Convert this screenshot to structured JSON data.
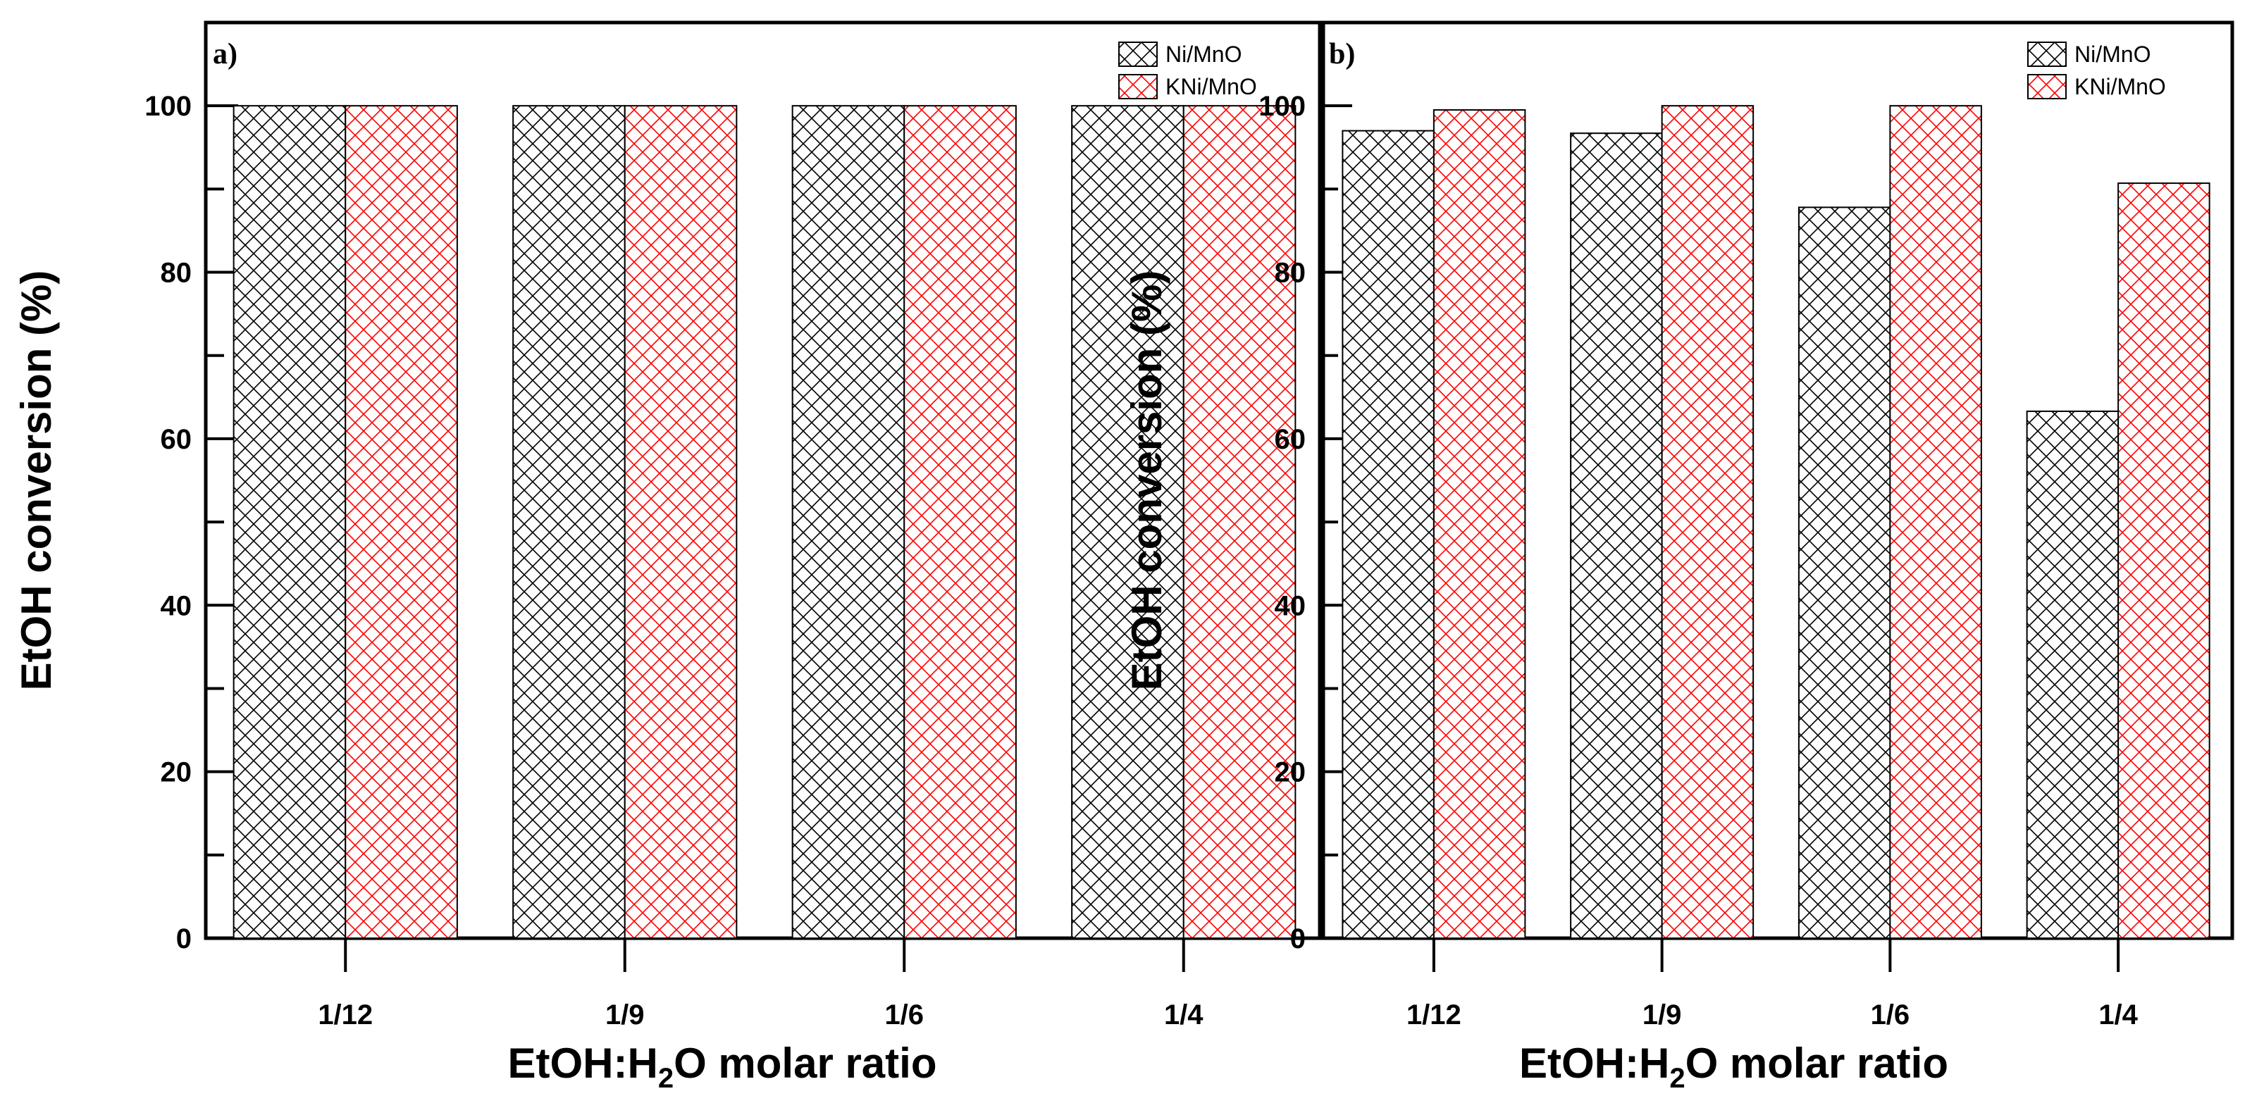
{
  "chart_data": [
    {
      "type": "bar",
      "panel_label": "a)",
      "categories": [
        "1/12",
        "1/9",
        "1/6",
        "1/4"
      ],
      "series": [
        {
          "name": "Ni/MnO",
          "values": [
            100,
            100,
            100,
            100
          ],
          "color": "#000000"
        },
        {
          "name": "KNi/MnO",
          "values": [
            100,
            100,
            100,
            100
          ],
          "color": "#ff0000"
        }
      ],
      "ylabel": "EtOH conversion (%)",
      "xlabel": "EtOH:H2O molar ratio",
      "xlabel_parts": {
        "pre": "EtOH:H",
        "sub": "2",
        "post": "O molar ratio"
      },
      "ylim": [
        0,
        110
      ],
      "yticks": [
        0,
        20,
        40,
        60,
        80,
        100
      ],
      "legend_position": "top-right"
    },
    {
      "type": "bar",
      "panel_label": "b)",
      "categories": [
        "1/12",
        "1/9",
        "1/6",
        "1/4"
      ],
      "series": [
        {
          "name": "Ni/MnO",
          "values": [
            97,
            96.7,
            87.8,
            63.3
          ],
          "color": "#000000"
        },
        {
          "name": "KNi/MnO",
          "values": [
            99.5,
            100,
            100,
            90.7
          ],
          "color": "#ff0000"
        }
      ],
      "ylabel": "EtOH conversion (%)",
      "xlabel": "EtOH:H2O molar ratio",
      "xlabel_parts": {
        "pre": "EtOH:H",
        "sub": "2",
        "post": "O molar ratio"
      },
      "ylim": [
        0,
        110
      ],
      "yticks": [
        0,
        20,
        40,
        60,
        80,
        100
      ],
      "legend_position": "top-right"
    }
  ]
}
